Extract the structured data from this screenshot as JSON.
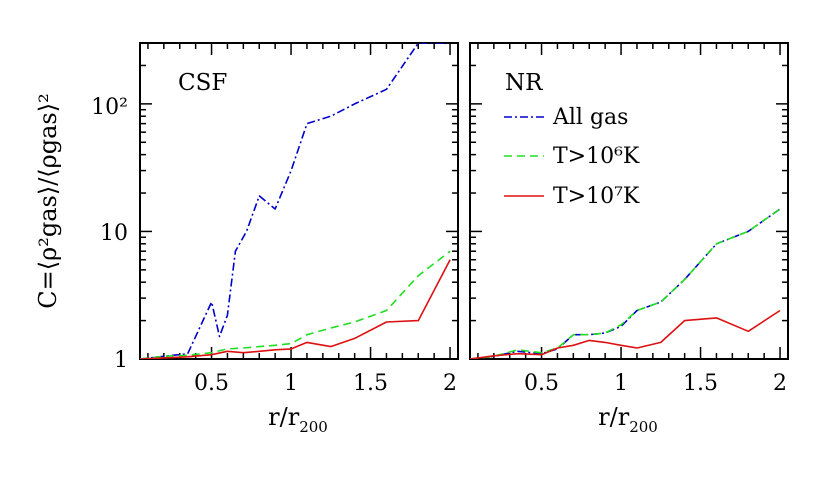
{
  "chart_data": {
    "type": "line",
    "panels": [
      {
        "label": "CSF",
        "series": [
          {
            "name": "All gas",
            "color": "#0000cc",
            "style": "dash-dot",
            "x": [
              0.05,
              0.2,
              0.35,
              0.5,
              0.55,
              0.6,
              0.65,
              0.72,
              0.8,
              0.9,
              1.0,
              1.1,
              1.25,
              1.4,
              1.6,
              1.8,
              2.0
            ],
            "y": [
              1.0,
              1.05,
              1.1,
              2.8,
              1.5,
              2.2,
              7.0,
              10.0,
              19.0,
              15.0,
              30.0,
              70.0,
              80.0,
              100.0,
              130.0,
              310.0,
              330.0
            ]
          },
          {
            "name": "T>10⁶K",
            "color": "#22dd22",
            "style": "dashed",
            "x": [
              0.05,
              0.2,
              0.35,
              0.5,
              0.6,
              0.7,
              0.8,
              0.9,
              1.0,
              1.1,
              1.25,
              1.4,
              1.6,
              1.8,
              2.0
            ],
            "y": [
              1.0,
              1.05,
              1.07,
              1.12,
              1.2,
              1.22,
              1.25,
              1.28,
              1.32,
              1.55,
              1.75,
              1.95,
              2.4,
              4.5,
              7.0
            ]
          },
          {
            "name": "T>10⁷K",
            "color": "#dd1111",
            "style": "solid",
            "x": [
              0.05,
              0.2,
              0.35,
              0.5,
              0.6,
              0.7,
              0.8,
              0.9,
              1.0,
              1.1,
              1.25,
              1.4,
              1.6,
              1.8,
              2.0
            ],
            "y": [
              1.0,
              1.02,
              1.04,
              1.08,
              1.15,
              1.12,
              1.15,
              1.18,
              1.2,
              1.35,
              1.25,
              1.45,
              1.95,
              2.0,
              6.0
            ]
          }
        ]
      },
      {
        "label": "NR",
        "series": [
          {
            "name": "All gas",
            "color": "#0000cc",
            "style": "dash-dot",
            "x": [
              0.05,
              0.2,
              0.35,
              0.5,
              0.6,
              0.7,
              0.8,
              0.9,
              1.0,
              1.1,
              1.25,
              1.4,
              1.6,
              1.8,
              2.0
            ],
            "y": [
              1.0,
              1.05,
              1.15,
              1.1,
              1.2,
              1.55,
              1.55,
              1.6,
              1.8,
              2.4,
              2.8,
              4.2,
              8.0,
              10.0,
              15.0
            ]
          },
          {
            "name": "T>10⁶K",
            "color": "#22dd22",
            "style": "dashed",
            "x": [
              0.05,
              0.2,
              0.35,
              0.5,
              0.6,
              0.7,
              0.8,
              0.9,
              1.0,
              1.1,
              1.25,
              1.4,
              1.6,
              1.8,
              2.0
            ],
            "y": [
              1.0,
              1.05,
              1.18,
              1.12,
              1.22,
              1.55,
              1.55,
              1.6,
              1.85,
              2.4,
              2.8,
              4.2,
              8.0,
              10.0,
              15.0
            ]
          },
          {
            "name": "T>10⁷K",
            "color": "#dd1111",
            "style": "solid",
            "x": [
              0.05,
              0.2,
              0.35,
              0.5,
              0.6,
              0.7,
              0.8,
              0.9,
              1.0,
              1.1,
              1.25,
              1.4,
              1.6,
              1.8,
              2.0
            ],
            "y": [
              1.0,
              1.06,
              1.1,
              1.08,
              1.22,
              1.28,
              1.4,
              1.35,
              1.28,
              1.22,
              1.35,
              2.0,
              2.1,
              1.65,
              2.4
            ]
          }
        ]
      }
    ],
    "xlim": [
      0.05,
      2.05
    ],
    "ylim": [
      1,
      300
    ],
    "yscale": "log",
    "x_ticks": [
      "0.5",
      "1",
      "1.5",
      "2"
    ],
    "y_ticks": [
      "1",
      "10",
      "10²"
    ],
    "xlabel": "r/r",
    "xlabel_sub": "200",
    "ylabel": "C=⟨ρ²gas⟩/⟨ρgas⟩²",
    "legend": {
      "placement": "upper-left of right panel",
      "entries": [
        "All gas",
        "T>10⁶K",
        "T>10⁷K"
      ]
    }
  }
}
